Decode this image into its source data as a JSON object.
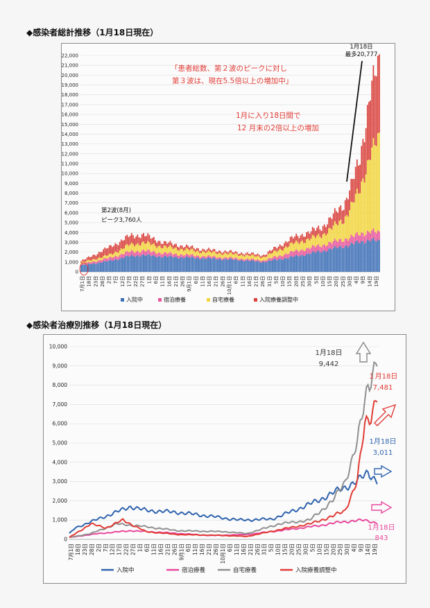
{
  "headings": {
    "top": "◆感染者総計推移（1月18日現在）",
    "bottom": "◆感染者治療別推移（1月18日現在）"
  },
  "chart_data": [
    {
      "type": "bar",
      "stacked": true,
      "x_start": "2020-07-01",
      "x_end": "2021-01-19",
      "x_ticks": [
        "7月1日",
        "18日",
        "23日",
        "28日",
        "2日",
        "7日",
        "12日",
        "17日",
        "22日",
        "27日",
        "1日",
        "6日",
        "11日",
        "16日",
        "21日",
        "26日",
        "9月1日",
        "6日",
        "11日",
        "16日",
        "21日",
        "26日",
        "10月1日",
        "6日",
        "11日",
        "16日",
        "21日",
        "26日",
        "31日",
        "5日",
        "10日",
        "15日",
        "20日",
        "25日",
        "30日",
        "5日",
        "10日",
        "15日",
        "20日",
        "25日",
        "30日",
        "4日",
        "9日",
        "14日",
        "19日"
      ],
      "ylim": [
        0,
        22000
      ],
      "y_ticks": [
        "0",
        "1,000",
        "2,000",
        "3,000",
        "4,000",
        "5,000",
        "6,000",
        "7,000",
        "8,000",
        "9,000",
        "10,000",
        "11,000",
        "12,000",
        "13,000",
        "14,000",
        "15,000",
        "16,000",
        "17,000",
        "18,000",
        "19,000",
        "20,000",
        "21,000",
        "22,000"
      ],
      "grid": true,
      "legend_position": "bottom",
      "series": [
        {
          "name": "入院中",
          "color": "#3d6fb6"
        },
        {
          "name": "宿泊療養",
          "color": "#e8559a"
        },
        {
          "name": "自宅療養",
          "color": "#f2d53c"
        },
        {
          "name": "入院療養調整中",
          "color": "#d9413c"
        }
      ],
      "keyframes": [
        {
          "date": "2020-07-01",
          "values": [
            650,
            120,
            150,
            150
          ]
        },
        {
          "date": "2020-07-20",
          "values": [
            1100,
            300,
            300,
            800
          ]
        },
        {
          "date": "2020-08-03",
          "values": [
            1600,
            450,
            700,
            900
          ]
        },
        {
          "date": "2020-08-12",
          "values": [
            1700,
            450,
            800,
            810
          ]
        },
        {
          "date": "2020-08-25",
          "values": [
            1550,
            350,
            650,
            450
          ]
        },
        {
          "date": "2020-09-20",
          "values": [
            1400,
            200,
            450,
            250
          ]
        },
        {
          "date": "2020-10-15",
          "values": [
            1200,
            150,
            400,
            200
          ]
        },
        {
          "date": "2020-11-01",
          "values": [
            1000,
            150,
            350,
            200
          ]
        },
        {
          "date": "2020-11-20",
          "values": [
            1500,
            500,
            800,
            600
          ]
        },
        {
          "date": "2020-12-10",
          "values": [
            2100,
            600,
            1000,
            800
          ]
        },
        {
          "date": "2020-12-25",
          "values": [
            2600,
            700,
            2000,
            1500
          ]
        },
        {
          "date": "2021-01-05",
          "values": [
            3000,
            800,
            4500,
            3000
          ]
        },
        {
          "date": "2021-01-12",
          "values": [
            3300,
            900,
            8000,
            6500
          ]
        },
        {
          "date": "2021-01-18",
          "values": [
            3011,
            843,
            9442,
            7481
          ]
        }
      ],
      "annotations": {
        "date_label": "1月18日",
        "max_label": "最多20,777",
        "red_note_1": "「患者総数、第２波のピークに対し",
        "red_note_2": "第３波は、現在5.5倍以上の増加中」",
        "red_note_3": "1月に入り18日間で",
        "red_note_4": "12 月末の2倍以上の増加",
        "wave2_1": "第2波(8月)",
        "wave2_2": "ピーク3,760人"
      }
    },
    {
      "type": "line",
      "x_start": "2020-07-01",
      "x_end": "2021-01-19",
      "x_ticks": [
        "7月1日",
        "18日",
        "23日",
        "28日",
        "2日",
        "7日",
        "12日",
        "17日",
        "22日",
        "27日",
        "1日",
        "6日",
        "11日",
        "16日",
        "21日",
        "26日",
        "9月1日",
        "6日",
        "11日",
        "16日",
        "21日",
        "26日",
        "10月1日",
        "6日",
        "11日",
        "16日",
        "21日",
        "26日",
        "31日",
        "5日",
        "10日",
        "15日",
        "20日",
        "25日",
        "30日",
        "5日",
        "10日",
        "15日",
        "20日",
        "25日",
        "30日",
        "4日",
        "9日",
        "14日",
        "19日"
      ],
      "ylim": [
        0,
        10000
      ],
      "y_ticks": [
        "0",
        "1,000",
        "2,000",
        "3,000",
        "4,000",
        "5,000",
        "6,000",
        "7,000",
        "8,000",
        "9,000",
        "10,000"
      ],
      "grid": true,
      "legend_position": "bottom",
      "series": [
        {
          "name": "入院中",
          "color": "#2f63ad",
          "points": [
            [
              "2020-07-01",
              300
            ],
            [
              "2020-07-05",
              600
            ],
            [
              "2020-07-18",
              1000
            ],
            [
              "2020-07-28",
              1300
            ],
            [
              "2020-08-10",
              1700
            ],
            [
              "2020-08-20",
              1500
            ],
            [
              "2020-09-10",
              1400
            ],
            [
              "2020-10-01",
              1200
            ],
            [
              "2020-10-20",
              1000
            ],
            [
              "2020-11-10",
              1050
            ],
            [
              "2020-11-25",
              1500
            ],
            [
              "2020-12-10",
              2000
            ],
            [
              "2020-12-25",
              2600
            ],
            [
              "2021-01-05",
              3000
            ],
            [
              "2021-01-12",
              3500
            ],
            [
              "2021-01-18",
              3011
            ]
          ]
        },
        {
          "name": "宿泊療養",
          "color": "#e8479b",
          "points": [
            [
              "2020-07-01",
              100
            ],
            [
              "2020-07-20",
              300
            ],
            [
              "2020-08-10",
              450
            ],
            [
              "2020-09-01",
              350
            ],
            [
              "2020-10-01",
              200
            ],
            [
              "2020-10-25",
              250
            ],
            [
              "2020-11-20",
              500
            ],
            [
              "2020-12-10",
              700
            ],
            [
              "2020-12-25",
              900
            ],
            [
              "2021-01-10",
              1000
            ],
            [
              "2021-01-18",
              843
            ]
          ]
        },
        {
          "name": "自宅療養",
          "color": "#8f8f8f",
          "points": [
            [
              "2020-07-01",
              100
            ],
            [
              "2020-07-15",
              300
            ],
            [
              "2020-08-01",
              800
            ],
            [
              "2020-08-15",
              700
            ],
            [
              "2020-09-10",
              450
            ],
            [
              "2020-10-10",
              400
            ],
            [
              "2020-10-25",
              300
            ],
            [
              "2020-11-15",
              800
            ],
            [
              "2020-12-05",
              1000
            ],
            [
              "2020-12-20",
              2000
            ],
            [
              "2020-12-28",
              3000
            ],
            [
              "2021-01-05",
              5000
            ],
            [
              "2021-01-12",
              8000
            ],
            [
              "2021-01-18",
              9442
            ]
          ]
        },
        {
          "name": "入院療養調整中",
          "color": "#e03b35",
          "points": [
            [
              "2020-07-01",
              100
            ],
            [
              "2020-07-15",
              800
            ],
            [
              "2020-07-25",
              600
            ],
            [
              "2020-08-05",
              1000
            ],
            [
              "2020-08-20",
              400
            ],
            [
              "2020-09-10",
              250
            ],
            [
              "2020-10-10",
              200
            ],
            [
              "2020-10-25",
              150
            ],
            [
              "2020-11-15",
              500
            ],
            [
              "2020-12-05",
              800
            ],
            [
              "2020-12-20",
              1200
            ],
            [
              "2020-12-28",
              1500
            ],
            [
              "2021-01-05",
              3000
            ],
            [
              "2021-01-10",
              6000
            ],
            [
              "2021-01-14",
              6500
            ],
            [
              "2021-01-18",
              7481
            ]
          ]
        }
      ],
      "annotations": [
        {
          "line1": "1月18日",
          "line2": "9,442",
          "color": "#333333"
        },
        {
          "line1": "１月18日",
          "line2": "7,481",
          "color": "#e03b35"
        },
        {
          "line1": "1月18日",
          "line2": "3,011",
          "color": "#2f63ad"
        },
        {
          "line1": "1月18日",
          "line2": "843",
          "color": "#e8479b"
        }
      ]
    }
  ]
}
